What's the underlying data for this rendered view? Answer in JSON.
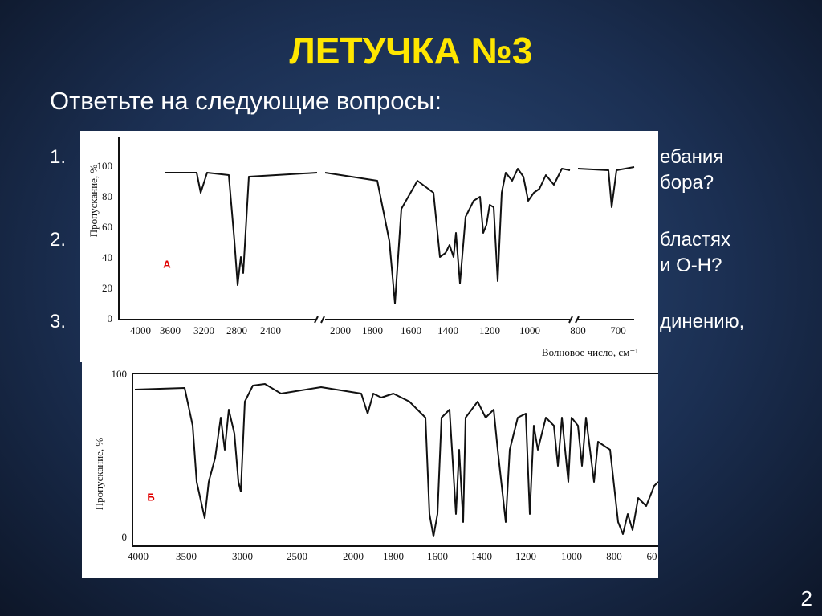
{
  "slide": {
    "title": "ЛЕТУЧКА №3",
    "subtitle": "Ответьте на следующие вопросы:",
    "items": [
      {
        "number": "1.",
        "fragments": [
          "ебания",
          "бора?"
        ]
      },
      {
        "number": "2.",
        "fragments": [
          "бластях",
          "и О-Н?"
        ]
      },
      {
        "number": "3.",
        "fragments": [
          "динению,"
        ]
      }
    ],
    "page_number": "2"
  },
  "spectra": [
    {
      "label": "А",
      "y_label": "Пропускание, %",
      "x_label": "Волновое число, см⁻¹",
      "yticks": [
        "0",
        "20",
        "40",
        "60",
        "80",
        "100"
      ],
      "xticks": [
        "4000",
        "3600",
        "3200",
        "2800",
        "2400",
        "2000",
        "1800",
        "1600",
        "1400",
        "1200",
        "1000",
        "800",
        "700"
      ]
    },
    {
      "label": "Б",
      "y_label": "Пропускание, %",
      "yticks": [
        "0",
        "100"
      ],
      "xticks": [
        "4000",
        "3500",
        "3000",
        "2500",
        "2000",
        "1800",
        "1600",
        "1400",
        "1200",
        "1000",
        "800",
        "60"
      ]
    }
  ]
}
